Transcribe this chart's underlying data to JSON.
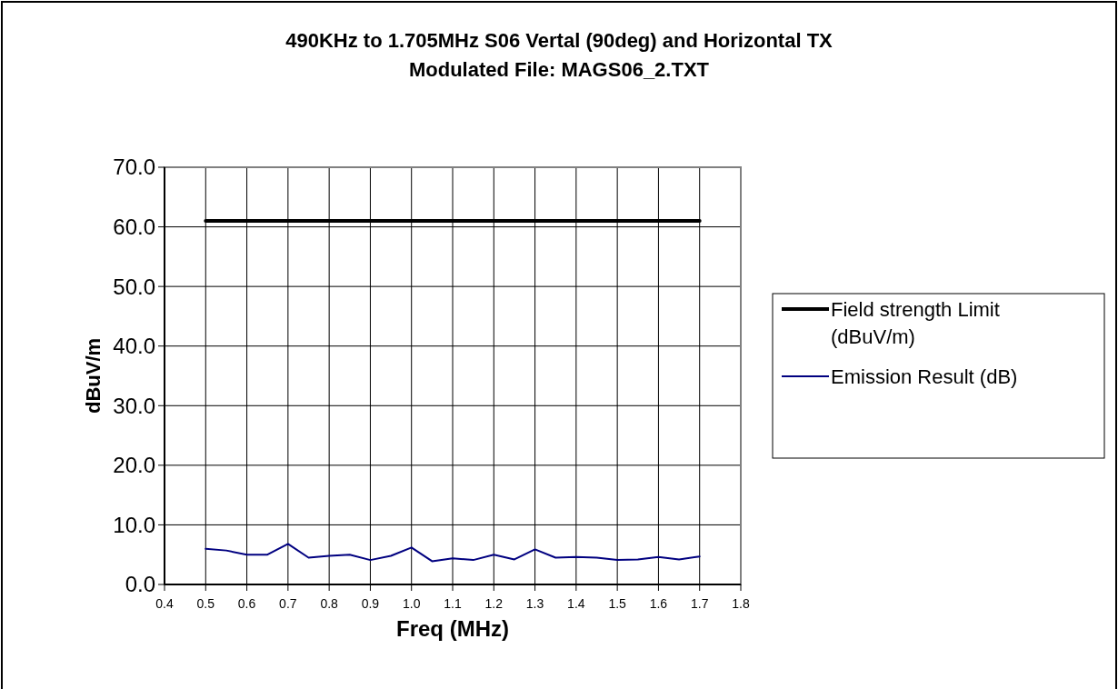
{
  "chart_data": {
    "type": "line",
    "title": "490KHz to 1.705MHz S06 Vertal (90deg) and Horizontal TX\nModulated File: MAGS06_2.TXT",
    "xlabel": "Freq (MHz)",
    "ylabel": "dBuV/m",
    "xlim": [
      0.4,
      1.8
    ],
    "xticks": [
      {
        "value": 0.4,
        "label": "0.4"
      },
      {
        "value": 0.5,
        "label": "0.5"
      },
      {
        "value": 0.6,
        "label": "0.6"
      },
      {
        "value": 0.7,
        "label": "0.7"
      },
      {
        "value": 0.8,
        "label": "0.8"
      },
      {
        "value": 0.9,
        "label": "0.9"
      },
      {
        "value": 1.0,
        "label": "1.0"
      },
      {
        "value": 1.1,
        "label": "1.1"
      },
      {
        "value": 1.2,
        "label": "1.2"
      },
      {
        "value": 1.3,
        "label": "1.3"
      },
      {
        "value": 1.4,
        "label": "1.4"
      },
      {
        "value": 1.5,
        "label": "1.5"
      },
      {
        "value": 1.6,
        "label": "1.6"
      },
      {
        "value": 1.7,
        "label": "1.7"
      },
      {
        "value": 1.8,
        "label": "1.8"
      }
    ],
    "ylim": [
      0,
      70
    ],
    "yticks": [
      {
        "value": 0,
        "label": "0.0"
      },
      {
        "value": 10,
        "label": "10.0"
      },
      {
        "value": 20,
        "label": "20.0"
      },
      {
        "value": 30,
        "label": "30.0"
      },
      {
        "value": 40,
        "label": "40.0"
      },
      {
        "value": 50,
        "label": "50.0"
      },
      {
        "value": 60,
        "label": "60.0"
      },
      {
        "value": 70,
        "label": "70.0"
      }
    ],
    "grid": true,
    "legend": "right",
    "marker": "none",
    "series": [
      {
        "name": "Field strength Limit (dBuV/m)",
        "color": "#000000",
        "x": [
          0.5,
          1.7
        ],
        "values": [
          61,
          61
        ]
      },
      {
        "name": "Emission Result (dB)",
        "color": "#000080",
        "x": [
          0.5,
          0.55,
          0.6,
          0.65,
          0.7,
          0.75,
          0.8,
          0.85,
          0.9,
          0.95,
          1.0,
          1.05,
          1.1,
          1.15,
          1.2,
          1.25,
          1.3,
          1.35,
          1.4,
          1.45,
          1.5,
          1.55,
          1.6,
          1.65,
          1.7
        ],
        "values": [
          6.0,
          5.7,
          5.0,
          5.0,
          6.8,
          4.5,
          4.8,
          5.0,
          4.1,
          4.8,
          6.2,
          3.9,
          4.4,
          4.1,
          5.0,
          4.2,
          5.9,
          4.5,
          4.6,
          4.5,
          4.1,
          4.2,
          4.6,
          4.2,
          4.7
        ]
      }
    ]
  }
}
